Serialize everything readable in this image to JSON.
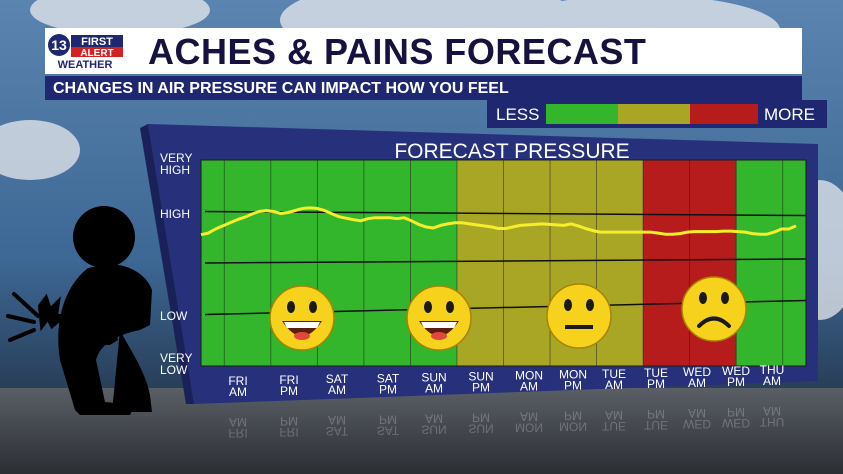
{
  "header": {
    "logo_number": "13",
    "logo_line1": "FIRST",
    "logo_line2": "ALERT",
    "logo_line3": "WEATHER",
    "title": "ACHES & PAINS FORECAST",
    "subtitle": "CHANGES IN AIR PRESSURE CAN IMPACT HOW YOU FEEL"
  },
  "legend": {
    "less_label": "LESS",
    "more_label": "MORE",
    "colors": [
      "#33b52c",
      "#a9a625",
      "#b71c1c"
    ]
  },
  "chart_data": {
    "type": "line",
    "title": "FORECAST PRESSURE",
    "y_level_labels": [
      "VERY HIGH",
      "HIGH",
      "LOW",
      "VERY LOW"
    ],
    "categories": [
      "FRI AM",
      "FRI PM",
      "SAT AM",
      "SAT PM",
      "SUN AM",
      "SUN PM",
      "MON AM",
      "MON PM",
      "TUE AM",
      "TUE PM",
      "WED AM",
      "WED PM",
      "THU AM"
    ],
    "ylim": [
      0,
      4
    ],
    "zones": [
      {
        "from": "FRI AM",
        "to": "SUN PM",
        "level": "less",
        "color": "#33b52c",
        "face": "happy"
      },
      {
        "from": "SUN PM",
        "to": "TUE PM",
        "level": "moderate",
        "color": "#a9a625",
        "face": "neutral"
      },
      {
        "from": "TUE PM",
        "to": "WED PM",
        "level": "more",
        "color": "#b71c1c",
        "face": "sad"
      },
      {
        "from": "WED PM",
        "to": "THU AM",
        "level": "less",
        "color": "#33b52c",
        "face": ""
      }
    ],
    "series": [
      {
        "color": "#f4ee2c",
        "x": [
          0,
          0.15,
          0.3,
          0.45,
          0.6,
          0.75,
          0.9,
          1.05,
          1.2,
          1.35,
          1.5,
          1.65,
          1.8,
          1.95,
          2.1,
          2.25,
          2.4,
          2.55,
          2.7,
          2.85,
          3.0,
          3.15,
          3.3,
          3.45,
          3.6,
          3.75,
          3.9,
          4.05,
          4.2,
          4.35,
          4.5,
          4.65,
          4.8,
          4.95,
          5.1,
          5.25,
          5.4,
          5.55,
          5.7,
          5.85,
          6.0,
          6.15,
          6.3,
          6.45,
          6.6,
          6.75,
          6.9,
          7.05,
          7.2,
          7.35,
          7.5,
          7.65,
          7.8,
          7.95,
          8.1,
          8.25,
          8.4,
          8.55,
          8.7,
          8.85,
          9.0,
          9.15,
          9.3,
          9.45,
          9.6,
          9.75,
          9.9,
          10.05,
          10.2,
          10.35,
          10.5,
          10.65,
          10.8,
          10.95,
          11.1,
          11.25,
          11.4,
          11.55,
          11.7,
          11.85,
          12.0,
          12.15,
          12.3
        ],
        "values": [
          2.55,
          2.58,
          2.66,
          2.72,
          2.78,
          2.84,
          2.89,
          2.95,
          3.0,
          3.02,
          3.0,
          2.96,
          2.98,
          3.02,
          3.06,
          3.07,
          3.06,
          3.02,
          2.96,
          2.9,
          2.87,
          2.84,
          2.82,
          2.86,
          2.88,
          2.88,
          2.88,
          2.86,
          2.88,
          2.82,
          2.75,
          2.7,
          2.68,
          2.73,
          2.76,
          2.78,
          2.78,
          2.76,
          2.74,
          2.72,
          2.7,
          2.67,
          2.67,
          2.7,
          2.73,
          2.74,
          2.75,
          2.76,
          2.75,
          2.74,
          2.73,
          2.76,
          2.72,
          2.67,
          2.63,
          2.6,
          2.6,
          2.6,
          2.6,
          2.6,
          2.6,
          2.6,
          2.6,
          2.58,
          2.56,
          2.56,
          2.57,
          2.6,
          2.61,
          2.61,
          2.61,
          2.61,
          2.62,
          2.62,
          2.61,
          2.6,
          2.57,
          2.56,
          2.56,
          2.6,
          2.66,
          2.66,
          2.72
        ]
      }
    ],
    "reference_lines": [
      "HIGH",
      "LOW"
    ]
  }
}
